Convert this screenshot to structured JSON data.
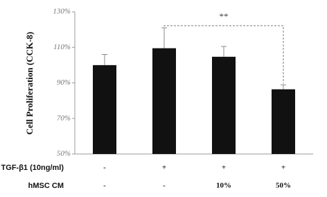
{
  "chart_data": {
    "type": "bar",
    "y_label": "Cell Proliferation (CCK-8)",
    "categories": [
      null,
      null,
      null,
      null
    ],
    "values": [
      100,
      109.5,
      104.7,
      86.4
    ],
    "errors": [
      6,
      11.5,
      5.8,
      2.5
    ],
    "color": "#111111",
    "ylim": [
      50,
      130
    ],
    "yticks": [
      {
        "value": 50,
        "label": "50%"
      },
      {
        "value": 70,
        "label": "70%"
      },
      {
        "value": 90,
        "label": "90%"
      },
      {
        "value": 110,
        "label": "110%"
      },
      {
        "value": 130,
        "label": "130%"
      }
    ],
    "grid": false,
    "annotation": {
      "text": "**",
      "from": 1,
      "to": 3
    },
    "treatments": [
      {
        "label": "TGF-β1 (10ng/ml)",
        "cells": [
          "-",
          "+",
          "+",
          "+"
        ]
      },
      {
        "label": "hMSC CM",
        "cells": [
          "-",
          "-",
          "10%",
          "50%"
        ]
      }
    ]
  }
}
